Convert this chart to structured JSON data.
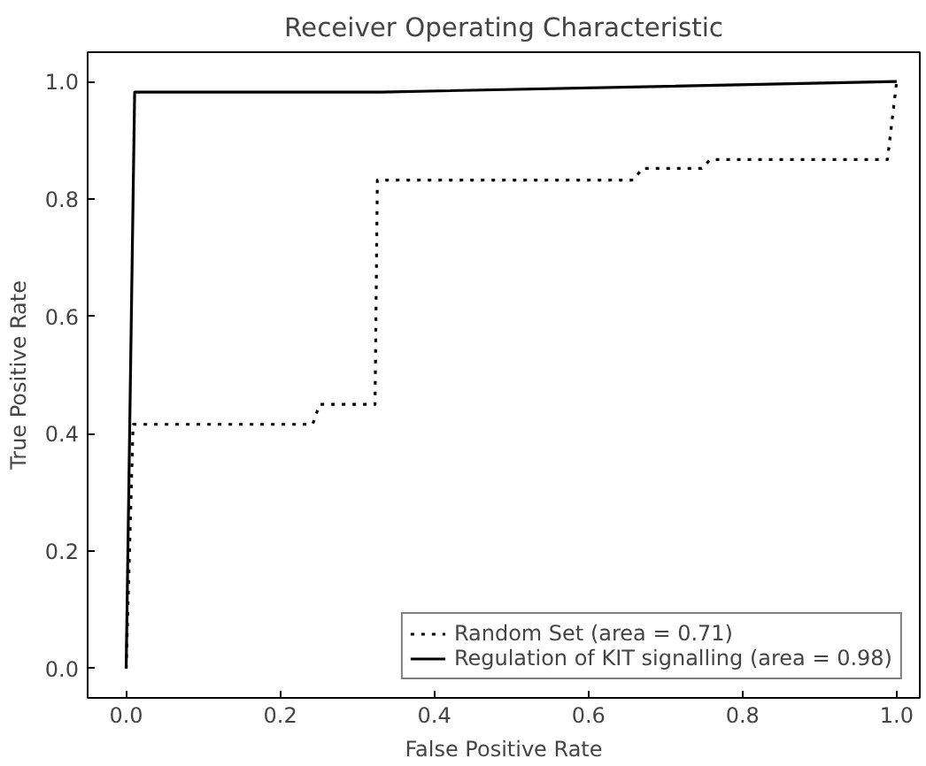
{
  "chart_data": {
    "type": "line",
    "title": "Receiver Operating Characteristic",
    "xlabel": "False Positive Rate",
    "ylabel": "True Positive Rate",
    "xlim": [
      -0.05,
      1.03
    ],
    "ylim": [
      -0.05,
      1.05
    ],
    "xticks": [
      {
        "value": 0,
        "label": "0.0"
      },
      0.2,
      0.4,
      0.6,
      0.8,
      {
        "value": 1,
        "label": "1.0"
      }
    ],
    "yticks": [
      {
        "value": 0,
        "label": "0.0"
      },
      0.2,
      0.4,
      0.6,
      0.8,
      {
        "value": 1,
        "label": "1.0"
      }
    ],
    "grid": false,
    "legend": "bottom right",
    "series": [
      {
        "name": "Random Set (area = 0.71)",
        "color": "#000000",
        "line_style": "dotted",
        "x": [
          0,
          0.009,
          0.242,
          0.251,
          0.323,
          0.326,
          0.333,
          0.658,
          0.67,
          0.747,
          0.758,
          0.988,
          1.0
        ],
        "values": [
          0,
          0.416,
          0.416,
          0.45,
          0.45,
          0.832,
          0.832,
          0.832,
          0.852,
          0.852,
          0.867,
          0.867,
          1.0
        ]
      },
      {
        "name": "Regulation of KIT signalling (area = 0.98)",
        "color": "#000000",
        "line_style": "solid",
        "x": [
          0,
          0.011,
          0.33,
          1.0
        ],
        "values": [
          0,
          0.982,
          0.982,
          1.0
        ]
      }
    ]
  }
}
